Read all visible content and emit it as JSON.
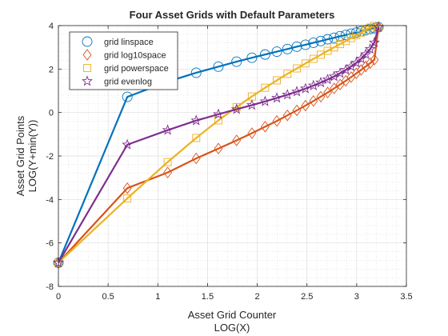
{
  "chart_data": {
    "type": "line",
    "title": "Four Asset Grids with Default Parameters",
    "xlabel": [
      "Asset Grid Counter",
      "LOG(X)"
    ],
    "ylabel": [
      "Asset Grid Points",
      "LOG(Y+min(Y))"
    ],
    "xlim": [
      0,
      3.5
    ],
    "ylim": [
      -8,
      4
    ],
    "xticks": [
      0,
      0.5,
      1,
      1.5,
      2,
      2.5,
      3,
      3.5
    ],
    "xtick_labels": [
      "0",
      "0.5",
      "1",
      "1.5",
      "2",
      "2.5",
      "3",
      "3.5"
    ],
    "yticks": [
      -8,
      -6,
      -4,
      -2,
      0,
      2,
      4
    ],
    "ytick_labels": [
      "-8",
      "-6",
      "-4",
      "-2",
      "0",
      "2",
      "4"
    ],
    "grid": true,
    "minor_grid": true,
    "legend_position": "top-left",
    "x": [
      0,
      0.693,
      1.099,
      1.386,
      1.609,
      1.792,
      1.946,
      2.079,
      2.197,
      2.303,
      2.398,
      2.485,
      2.565,
      2.639,
      2.708,
      2.773,
      2.833,
      2.89,
      2.944,
      2.996,
      3.045,
      3.091,
      3.135,
      3.178,
      3.219
    ],
    "series": [
      {
        "name": "grid linspace",
        "color": "#0072BD",
        "marker": "circle",
        "values": [
          -6.91,
          0.72,
          1.42,
          1.83,
          2.11,
          2.34,
          2.52,
          2.67,
          2.8,
          2.92,
          3.03,
          3.12,
          3.21,
          3.29,
          3.37,
          3.44,
          3.51,
          3.57,
          3.63,
          3.68,
          3.74,
          3.79,
          3.84,
          3.88,
          3.93
        ]
      },
      {
        "name": "grid log10space",
        "color": "#D95319",
        "marker": "diamond",
        "values": [
          -6.91,
          -3.48,
          -2.76,
          -2.11,
          -1.66,
          -1.28,
          -0.95,
          -0.65,
          -0.39,
          -0.13,
          0.1,
          0.32,
          0.53,
          0.73,
          0.92,
          1.11,
          1.29,
          1.46,
          1.63,
          1.8,
          1.96,
          2.12,
          2.27,
          2.43,
          3.93
        ]
      },
      {
        "name": "grid powerspace",
        "color": "#EDB120",
        "marker": "square",
        "values": [
          -6.91,
          -3.95,
          -2.28,
          -1.17,
          -0.36,
          0.25,
          0.74,
          1.14,
          1.48,
          1.78,
          2.03,
          2.26,
          2.47,
          2.66,
          2.84,
          3.0,
          3.15,
          3.29,
          3.43,
          3.56,
          3.68,
          3.8,
          3.91,
          3.99,
          3.93
        ]
      },
      {
        "name": "grid evenlog",
        "color": "#7E2F8E",
        "marker": "star",
        "values": [
          -6.91,
          -1.48,
          -0.81,
          -0.37,
          -0.08,
          0.15,
          0.34,
          0.51,
          0.67,
          0.82,
          0.96,
          1.1,
          1.24,
          1.38,
          1.52,
          1.66,
          1.81,
          1.96,
          2.12,
          2.29,
          2.48,
          2.68,
          2.92,
          3.22,
          3.93
        ]
      }
    ]
  }
}
